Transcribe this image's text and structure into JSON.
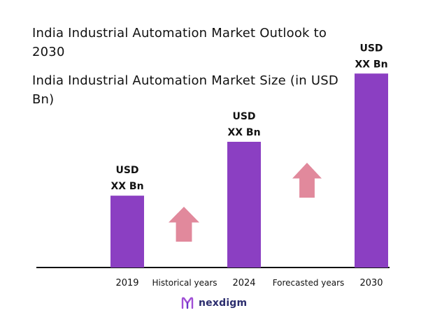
{
  "header": {
    "title": "India Industrial Automation Market Outlook to 2030",
    "subtitle": "India Industrial Automation Market Size (in USD Bn)"
  },
  "brand": {
    "name": "nexdigm",
    "logo_icon": "nexdigm-logo-icon"
  },
  "colors": {
    "bar": "#8b3fc2",
    "arrow": "#e1899c",
    "axis": "#111111",
    "logo": "#2b2d6e"
  },
  "chart_data": {
    "type": "bar",
    "title": "India Industrial Automation Market Size (in USD Bn)",
    "xlabel": "",
    "ylabel": "",
    "categories": [
      "2019",
      "2024",
      "2030"
    ],
    "values": [
      1.0,
      1.75,
      2.7
    ],
    "value_unit": "relative",
    "data_labels": [
      [
        "USD",
        "XX Bn"
      ],
      [
        "USD",
        "XX Bn"
      ],
      [
        "USD",
        "XX Bn"
      ]
    ],
    "ylim": [
      0,
      2.8
    ],
    "grid": false,
    "period_labels": [
      "Historical years",
      "Forecasted years"
    ],
    "annotations": [
      {
        "type": "arrow-up",
        "between": [
          "2019",
          "2024"
        ],
        "label": "Historical years"
      },
      {
        "type": "arrow-up",
        "between": [
          "2024",
          "2030"
        ],
        "label": "Forecasted years"
      }
    ]
  }
}
